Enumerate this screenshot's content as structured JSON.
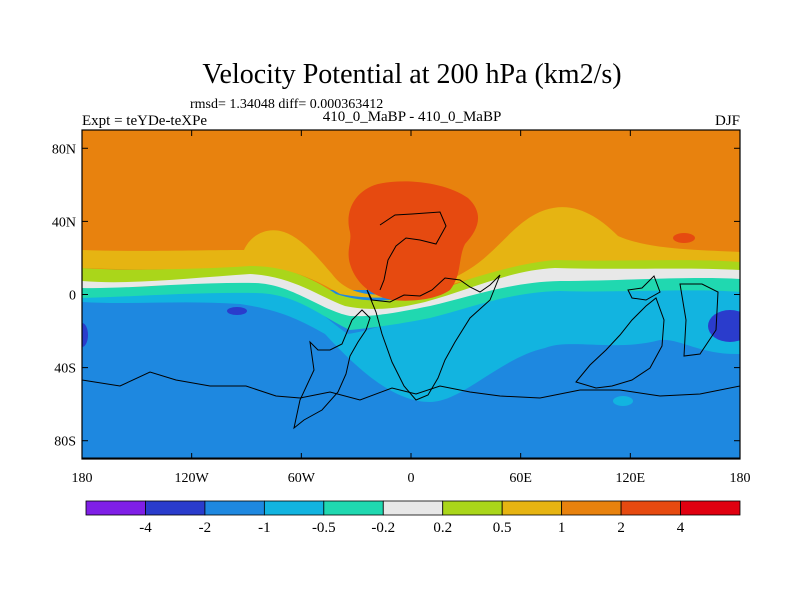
{
  "chart_data": {
    "type": "contour_map",
    "title": "Velocity Potential at 200 hPa (km2/s)",
    "subtitle": "rmsd= 1.34048 diff= 0.000363412",
    "left_label": "Expt = teYDe-teXPe",
    "center_label": "410_0_MaBP - 410_0_MaBP",
    "right_label": "DJF",
    "xlim": [
      -180,
      180
    ],
    "ylim": [
      -90,
      90
    ],
    "x_ticks": [
      {
        "value": -180,
        "label": "180"
      },
      {
        "value": -120,
        "label": "120W"
      },
      {
        "value": -60,
        "label": "60W"
      },
      {
        "value": 0,
        "label": "0"
      },
      {
        "value": 60,
        "label": "60E"
      },
      {
        "value": 120,
        "label": "120E"
      },
      {
        "value": 180,
        "label": "180"
      }
    ],
    "y_ticks": [
      {
        "value": 80,
        "label": "80N"
      },
      {
        "value": 40,
        "label": "40N"
      },
      {
        "value": 0,
        "label": "0"
      },
      {
        "value": -40,
        "label": "40S"
      },
      {
        "value": -80,
        "label": "80S"
      }
    ],
    "colorbar": {
      "colors": [
        "#7f1fe6",
        "#2a3ccc",
        "#1e88e0",
        "#12b4e0",
        "#20d8b0",
        "#e8e8e8",
        "#aad61a",
        "#e6b412",
        "#e8820e",
        "#e64a10",
        "#e00010"
      ],
      "labels": [
        "-4",
        "-2",
        "-1",
        "-0.5",
        "-0.2",
        "0.2",
        "0.5",
        "1",
        "2",
        "4"
      ]
    },
    "fields": [
      {
        "level": "1 to 2",
        "color": "#e8820e",
        "region": "northern extratropics"
      },
      {
        "level": "0.5 to 1",
        "color": "#e6b412",
        "region": "subtropical bands"
      },
      {
        "level": "-1 to -0.5",
        "color": "#1e88e0",
        "region": "southern hemisphere"
      },
      {
        "level": "2 to 4",
        "color": "#e64a10",
        "region": "Europe and North Africa maximum"
      }
    ]
  }
}
